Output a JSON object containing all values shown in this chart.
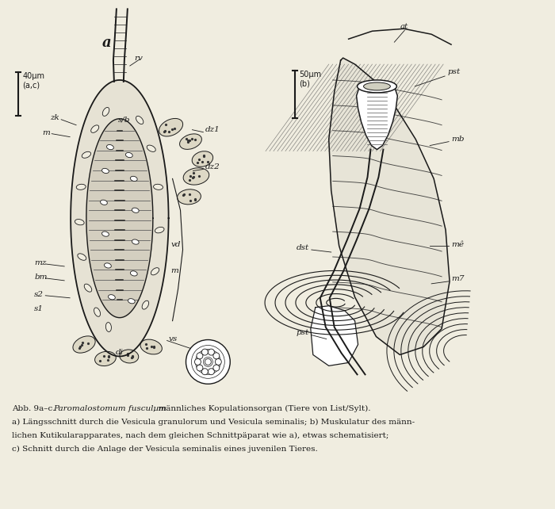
{
  "background_color": "#f0ede0",
  "fig_width": 7.0,
  "fig_height": 6.42,
  "caption_line1_pre": "Abb. 9a–c. ",
  "caption_line1_italic": "Paromalostomum fusculum",
  "caption_line1_post": ", männliches Kopulationsorgan (Tiere von List/Sylt).",
  "caption_line2": "a) Längsschnitt durch die Vesicula granulorum und Vesicula seminalis; b) Muskulatur des männ-",
  "caption_line3": "lichen Kutikularapparates, nach dem gleichen Schnittpäparat wie a), etwas schematisiert;",
  "caption_line4": "c) Schnitt durch die Anlage der Vesicula seminalis eines juvenilen Tieres.",
  "scale_bar_a": "40μm\n(a,c)",
  "scale_bar_b": "50μm\n(b)"
}
